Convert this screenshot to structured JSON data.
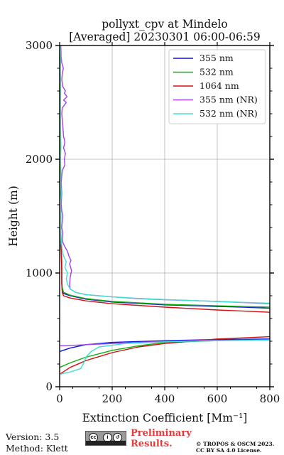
{
  "chart_data": {
    "type": "line",
    "title": "pollyxt_cpv at Mindelo",
    "subtitle": "[Averaged] 20230301 06:00-06:59",
    "xlabel": "Extinction Coefficient [Mm⁻¹]",
    "ylabel": "Height (m)",
    "xlim": [
      0,
      800
    ],
    "ylim": [
      0,
      3000
    ],
    "xticks": [
      "0",
      "200",
      "400",
      "600",
      "800"
    ],
    "yticks": [
      "0",
      "1000",
      "2000",
      "3000"
    ],
    "grid": true,
    "legend_position": "top-right",
    "series": [
      {
        "name": "355 nm",
        "color": "#1010e0",
        "points": [
          [
            0,
            310
          ],
          [
            40,
            340
          ],
          [
            100,
            370
          ],
          [
            200,
            390
          ],
          [
            400,
            405
          ],
          [
            600,
            415
          ],
          [
            800,
            420
          ],
          null,
          [
            800,
            690
          ],
          [
            700,
            700
          ],
          [
            600,
            706
          ],
          [
            400,
            720
          ],
          [
            200,
            745
          ],
          [
            100,
            770
          ],
          [
            40,
            800
          ],
          [
            15,
            820
          ],
          [
            10,
            850
          ],
          [
            8,
            900
          ],
          [
            8,
            1000
          ],
          [
            8,
            1100
          ],
          [
            6,
            1200
          ],
          [
            5,
            1250
          ]
        ]
      },
      {
        "name": "532 nm",
        "color": "#10b010",
        "points": [
          [
            0,
            170
          ],
          [
            40,
            210
          ],
          [
            100,
            260
          ],
          [
            200,
            320
          ],
          [
            300,
            360
          ],
          [
            400,
            390
          ],
          [
            600,
            405
          ],
          [
            800,
            415
          ],
          null,
          [
            800,
            700
          ],
          [
            700,
            705
          ],
          [
            600,
            712
          ],
          [
            400,
            725
          ],
          [
            200,
            750
          ],
          [
            100,
            775
          ],
          [
            40,
            805
          ],
          [
            15,
            830
          ],
          [
            10,
            870
          ],
          [
            8,
            950
          ],
          [
            8,
            1050
          ],
          [
            6,
            1150
          ],
          [
            5,
            1250
          ],
          [
            4,
            1400
          ],
          [
            4,
            1600
          ],
          [
            3,
            2000
          ],
          [
            3,
            2500
          ],
          [
            2,
            3000
          ]
        ]
      },
      {
        "name": "1064 nm",
        "color": "#d01010",
        "points": [
          [
            0,
            110
          ],
          [
            40,
            170
          ],
          [
            100,
            230
          ],
          [
            200,
            300
          ],
          [
            300,
            350
          ],
          [
            400,
            380
          ],
          [
            600,
            420
          ],
          [
            800,
            440
          ],
          null,
          [
            800,
            655
          ],
          [
            700,
            665
          ],
          [
            600,
            675
          ],
          [
            400,
            700
          ],
          [
            200,
            730
          ],
          [
            100,
            755
          ],
          [
            40,
            780
          ],
          [
            15,
            800
          ],
          [
            10,
            830
          ],
          [
            8,
            900
          ],
          [
            8,
            1000
          ],
          [
            7,
            1100
          ],
          [
            6,
            1200
          ],
          [
            5,
            1250
          ]
        ]
      },
      {
        "name": "355 nm (NR)",
        "color": "#a040f0",
        "points": [
          [
            0,
            360
          ],
          [
            60,
            365
          ],
          [
            150,
            375
          ],
          [
            250,
            385
          ],
          [
            350,
            395
          ],
          [
            500,
            405
          ],
          [
            650,
            410
          ],
          [
            800,
            412
          ],
          null,
          [
            800,
            730
          ],
          [
            700,
            740
          ],
          [
            600,
            750
          ],
          [
            500,
            758
          ],
          [
            400,
            765
          ],
          [
            300,
            775
          ],
          [
            200,
            790
          ],
          [
            100,
            810
          ],
          [
            60,
            830
          ],
          [
            40,
            860
          ],
          [
            38,
            900
          ],
          [
            40,
            960
          ],
          [
            45,
            1020
          ],
          [
            42,
            1050
          ],
          [
            38,
            1080
          ],
          [
            43,
            1110
          ],
          [
            35,
            1150
          ],
          [
            30,
            1190
          ],
          [
            20,
            1230
          ],
          [
            12,
            1270
          ],
          [
            10,
            1300
          ],
          [
            12,
            1350
          ],
          [
            8,
            1400
          ],
          [
            10,
            1450
          ],
          [
            12,
            1500
          ],
          [
            8,
            1550
          ],
          [
            6,
            1600
          ],
          [
            8,
            1700
          ],
          [
            6,
            1800
          ],
          [
            10,
            1900
          ],
          [
            20,
            1950
          ],
          [
            18,
            2000
          ],
          [
            22,
            2050
          ],
          [
            15,
            2100
          ],
          [
            20,
            2150
          ],
          [
            15,
            2200
          ],
          [
            12,
            2300
          ],
          [
            8,
            2400
          ],
          [
            10,
            2450
          ],
          [
            25,
            2500
          ],
          [
            15,
            2520
          ],
          [
            28,
            2550
          ],
          [
            18,
            2580
          ],
          [
            22,
            2600
          ],
          [
            12,
            2640
          ],
          [
            8,
            2700
          ],
          [
            10,
            2750
          ],
          [
            14,
            2800
          ],
          [
            8,
            2850
          ],
          [
            6,
            2900
          ],
          [
            4,
            3000
          ]
        ]
      },
      {
        "name": "532 nm (NR)",
        "color": "#40e0d0",
        "points": [
          [
            0,
            110
          ],
          [
            40,
            130
          ],
          [
            80,
            160
          ],
          [
            90,
            200
          ],
          [
            100,
            260
          ],
          [
            120,
            310
          ],
          [
            150,
            350
          ],
          [
            250,
            380
          ],
          [
            400,
            395
          ],
          [
            600,
            405
          ],
          [
            800,
            410
          ],
          null,
          [
            800,
            735
          ],
          [
            700,
            742
          ],
          [
            600,
            750
          ],
          [
            500,
            758
          ],
          [
            400,
            767
          ],
          [
            300,
            777
          ],
          [
            200,
            790
          ],
          [
            100,
            810
          ],
          [
            60,
            830
          ],
          [
            40,
            860
          ],
          [
            30,
            900
          ],
          [
            25,
            950
          ],
          [
            30,
            1000
          ],
          [
            20,
            1050
          ],
          [
            25,
            1100
          ],
          [
            15,
            1150
          ],
          [
            10,
            1200
          ],
          [
            8,
            1250
          ],
          [
            6,
            1300
          ],
          [
            4,
            1400
          ],
          [
            5,
            1500
          ],
          [
            4,
            1600
          ],
          [
            6,
            1700
          ],
          [
            4,
            1800
          ],
          [
            5,
            1900
          ],
          [
            3,
            2000
          ],
          [
            5,
            2100
          ],
          [
            4,
            2200
          ],
          [
            3,
            2400
          ],
          [
            4,
            2600
          ],
          [
            3,
            2800
          ],
          [
            5,
            2900
          ],
          [
            2,
            3000
          ]
        ]
      }
    ]
  },
  "footer": {
    "version": "Version: 3.5",
    "method": "Method: Klett",
    "preliminary_line1": "Preliminary",
    "preliminary_line2": "Results.",
    "copyright_line1": "© TROPOS & OSCM 2023.",
    "copyright_line2": "CC BY SA 4.0 License.",
    "license_badge": "cc by sa"
  }
}
